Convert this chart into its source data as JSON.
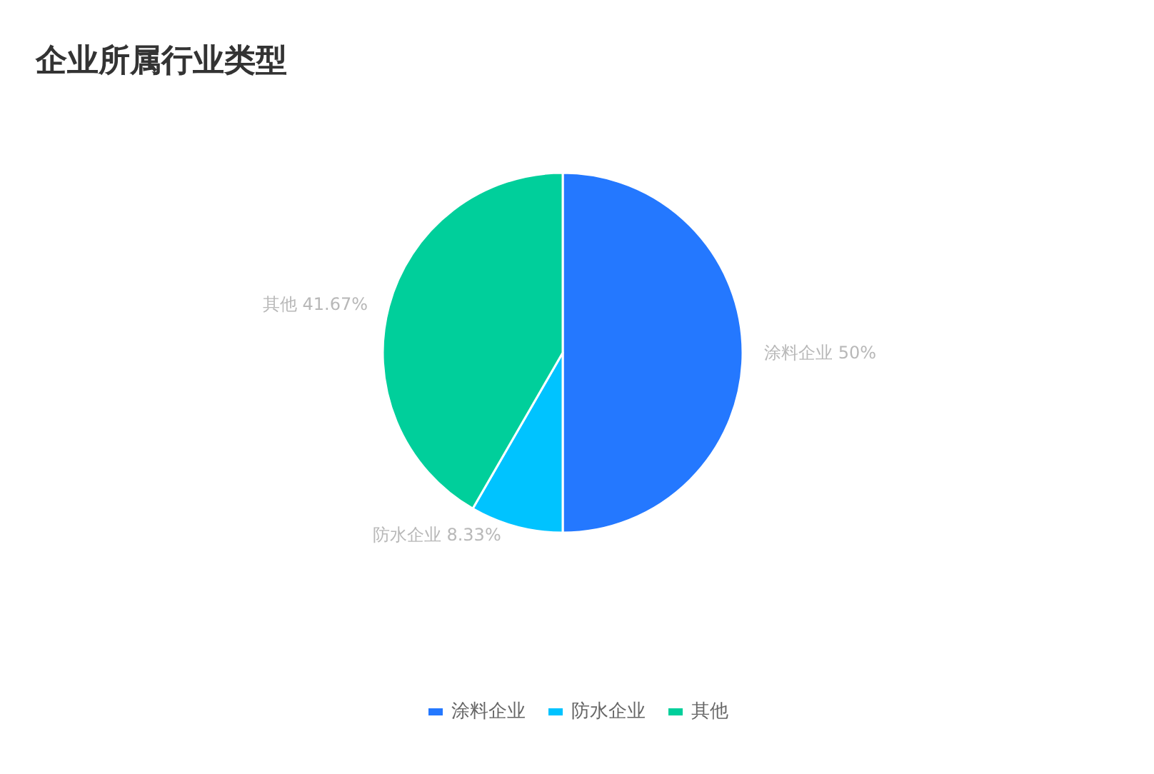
{
  "chart_data": {
    "type": "pie",
    "title": "企业所属行业类型",
    "categories": [
      "涂料企业",
      "防水企业",
      "其他"
    ],
    "values": [
      50,
      8.33,
      41.67
    ],
    "colors": [
      "#2478ff",
      "#00c3ff",
      "#00cf9b"
    ],
    "value_labels": [
      "50%",
      "8.33%",
      "41.67%"
    ],
    "legend": "bottom"
  }
}
